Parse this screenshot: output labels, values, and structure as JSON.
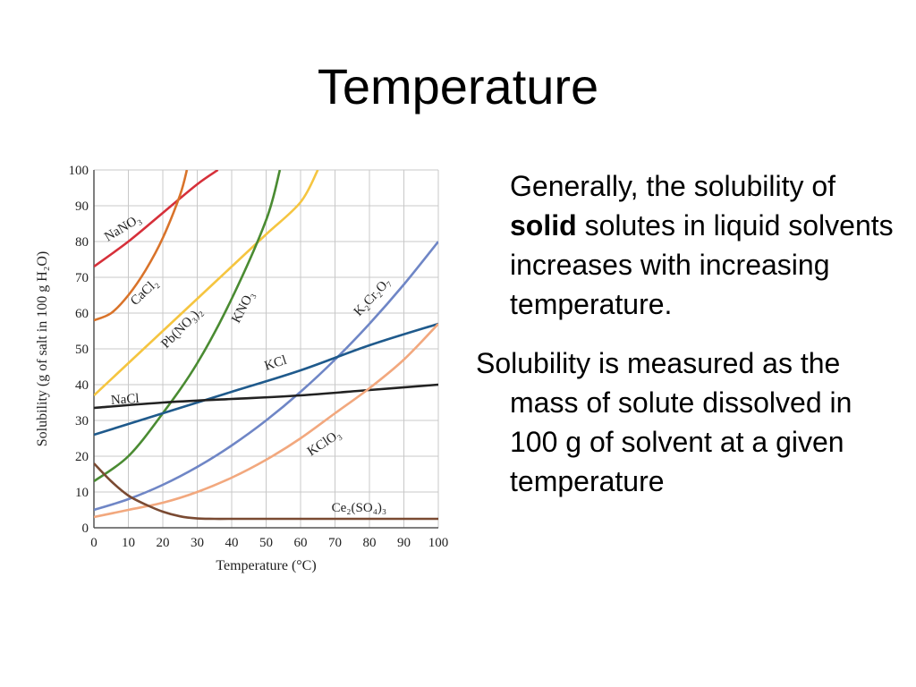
{
  "slide": {
    "title": "Temperature"
  },
  "bullets": [
    {
      "segments": [
        "Generally, the solubility of ",
        "solid",
        " solutes in liquid solvents increases with increasing temperature."
      ]
    },
    {
      "text": "Solubility is measured as the mass of solute dissolved in 100 g of solvent at a given temperature"
    }
  ],
  "chart_data": {
    "type": "line",
    "xlabel": "Temperature (°C)",
    "ylabel": "Solubility (g of salt in 100 g H₂O)",
    "xlim": [
      0,
      100
    ],
    "ylim": [
      0,
      100
    ],
    "xticks": [
      0,
      10,
      20,
      30,
      40,
      50,
      60,
      70,
      80,
      90,
      100
    ],
    "yticks": [
      0,
      10,
      20,
      30,
      40,
      50,
      60,
      70,
      80,
      90,
      100
    ],
    "grid": true,
    "series": [
      {
        "name": "NaNO₃",
        "color": "#d6303a",
        "x": [
          0,
          10,
          20,
          30,
          36
        ],
        "y": [
          73,
          80,
          88,
          96,
          100
        ]
      },
      {
        "name": "CaCl₂",
        "color": "#d9732a",
        "x": [
          0,
          5,
          10,
          15,
          20,
          25,
          27
        ],
        "y": [
          58,
          60,
          65,
          72,
          81,
          93,
          100
        ]
      },
      {
        "name": "Pb(NO₃)₂",
        "color": "#f5c540",
        "x": [
          0,
          10,
          20,
          30,
          40,
          50,
          60,
          65
        ],
        "y": [
          37,
          46,
          55,
          64,
          73,
          82,
          91,
          100
        ]
      },
      {
        "name": "KNO₃",
        "color": "#4a8b32",
        "x": [
          0,
          10,
          20,
          30,
          40,
          50,
          54
        ],
        "y": [
          13,
          20,
          32,
          46,
          64,
          86,
          100
        ]
      },
      {
        "name": "K₂Cr₂O₇",
        "color": "#6f86c6",
        "x": [
          0,
          10,
          20,
          30,
          40,
          50,
          60,
          70,
          80,
          90,
          100
        ],
        "y": [
          5,
          8,
          12,
          17,
          23,
          30,
          38,
          47,
          57,
          68,
          80
        ]
      },
      {
        "name": "KCl",
        "color": "#1f5a8c",
        "x": [
          0,
          20,
          40,
          60,
          80,
          100
        ],
        "y": [
          26,
          32,
          38,
          44,
          51,
          57
        ]
      },
      {
        "name": "NaCl",
        "color": "#222222",
        "x": [
          0,
          20,
          40,
          60,
          80,
          100
        ],
        "y": [
          33.5,
          35,
          36,
          37,
          38.5,
          40
        ]
      },
      {
        "name": "KClO₃",
        "color": "#f2a87e",
        "x": [
          0,
          10,
          20,
          30,
          40,
          50,
          60,
          70,
          80,
          90,
          100
        ],
        "y": [
          3,
          5,
          7,
          10,
          14,
          19,
          25,
          32,
          39,
          47,
          57
        ]
      },
      {
        "name": "Ce₂(SO₄)₃",
        "color": "#7a4a32",
        "x": [
          0,
          5,
          10,
          15,
          20,
          25,
          30,
          35,
          40,
          60,
          80,
          100
        ],
        "y": [
          18,
          13,
          9,
          6.5,
          4.5,
          3.2,
          2.6,
          2.5,
          2.5,
          2.5,
          2.5,
          2.5
        ]
      }
    ],
    "labels": [
      {
        "series": "NaNO₃",
        "x": 4,
        "y": 80,
        "angle": -31
      },
      {
        "series": "CaCl₂",
        "x": 12,
        "y": 62,
        "angle": -43
      },
      {
        "series": "Pb(NO₃)₂",
        "x": 21,
        "y": 50,
        "angle": -45
      },
      {
        "series": "KNO₃",
        "x": 42,
        "y": 57,
        "angle": -62
      },
      {
        "series": "K₂Cr₂O₇",
        "x": 77,
        "y": 59,
        "angle": -47
      },
      {
        "series": "KCl",
        "x": 50,
        "y": 44,
        "angle": -18
      },
      {
        "series": "NaCl",
        "x": 5,
        "y": 34.5,
        "angle": -4
      },
      {
        "series": "KClO₃",
        "x": 63,
        "y": 20,
        "angle": -33
      },
      {
        "series": "Ce₂(SO₄)₃",
        "x": 69,
        "y": 4.5,
        "angle": 0
      }
    ]
  }
}
